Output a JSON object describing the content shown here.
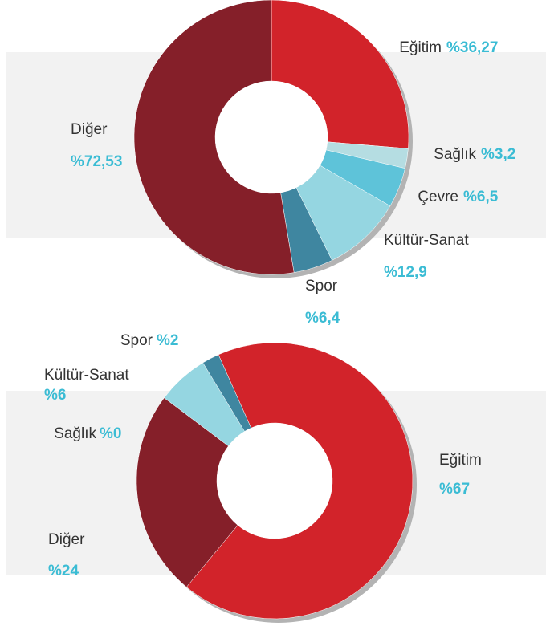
{
  "chart_data": [
    {
      "type": "donut",
      "categories": [
        "Eğitim",
        "Sağlık",
        "Çevre",
        "Kültür-Sanat",
        "Spor",
        "Diğer"
      ],
      "values": [
        36.27,
        3.2,
        6.5,
        12.9,
        6.4,
        72.53
      ],
      "value_labels": [
        "%36,27",
        "%3,2",
        "%6,5",
        "%12,9",
        "%6,4",
        "%72,53"
      ],
      "colors": [
        "#d2232a",
        "#b5dde2",
        "#5ec3d9",
        "#95d6e1",
        "#3f86a0",
        "#851f29"
      ]
    },
    {
      "type": "donut",
      "categories": [
        "Eğitim",
        "Diğer",
        "Sağlık",
        "Kültür-Sanat",
        "Spor"
      ],
      "values": [
        67,
        24,
        0,
        6,
        2
      ],
      "value_labels": [
        "%67",
        "%24",
        "%0",
        "%6",
        "%2"
      ],
      "colors": [
        "#d2232a",
        "#851f29",
        "#b5dde2",
        "#95d6e1",
        "#3f86a0"
      ]
    }
  ]
}
